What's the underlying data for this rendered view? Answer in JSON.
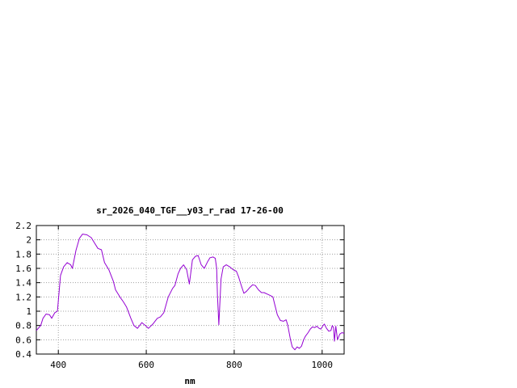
{
  "chart_data": {
    "type": "line",
    "title": "sr_2026_040_TGF__y03_r_rad 17-26-00",
    "xlabel": "nm",
    "ylabel": "",
    "xlim": [
      350,
      1050
    ],
    "ylim": [
      0.4,
      2.2
    ],
    "x_ticks": [
      400,
      600,
      800,
      1000
    ],
    "y_ticks": [
      0.4,
      0.6,
      0.8,
      1,
      1.2,
      1.4,
      1.6,
      1.8,
      2,
      2.2
    ],
    "x_tick_labels": [
      "400",
      "600",
      "800",
      "1000"
    ],
    "y_tick_labels": [
      "0.4",
      "0.6",
      "0.8",
      "1",
      "1.2",
      "1.4",
      "1.6",
      "1.8",
      "2",
      "2.2"
    ],
    "grid": true,
    "line_color": "#9400d3",
    "series": [
      {
        "x": [
          350,
          360,
          365,
          372,
          380,
          385,
          392,
          398,
          405,
          412,
          420,
          428,
          432,
          440,
          448,
          455,
          465,
          475,
          482,
          490,
          498,
          505,
          515,
          525,
          530,
          540,
          548,
          555,
          565,
          572,
          580,
          590,
          598,
          605,
          615,
          625,
          632,
          640,
          650,
          660,
          665,
          672,
          678,
          685,
          692,
          698,
          705,
          712,
          718,
          725,
          732,
          740,
          745,
          752,
          757,
          760,
          762,
          765,
          770,
          775,
          782,
          790,
          798,
          805,
          810,
          815,
          822,
          828,
          835,
          842,
          848,
          855,
          862,
          868,
          875,
          882,
          888,
          892,
          898,
          905,
          912,
          918,
          922,
          928,
          932,
          938,
          943,
          948,
          953,
          958,
          962,
          968,
          973,
          978,
          983,
          988,
          993,
          997,
          1002,
          1005,
          1010,
          1015,
          1020,
          1023,
          1026,
          1028,
          1031,
          1035,
          1040,
          1045,
          1050
        ],
        "values": [
          0.73,
          0.8,
          0.9,
          0.96,
          0.95,
          0.9,
          0.98,
          1.0,
          1.5,
          1.62,
          1.68,
          1.65,
          1.6,
          1.85,
          2.02,
          2.08,
          2.07,
          2.03,
          1.96,
          1.88,
          1.86,
          1.68,
          1.58,
          1.42,
          1.3,
          1.2,
          1.13,
          1.06,
          0.9,
          0.8,
          0.76,
          0.84,
          0.8,
          0.76,
          0.82,
          0.9,
          0.92,
          0.98,
          1.2,
          1.32,
          1.36,
          1.52,
          1.6,
          1.65,
          1.58,
          1.38,
          1.72,
          1.77,
          1.78,
          1.65,
          1.6,
          1.7,
          1.75,
          1.76,
          1.74,
          1.6,
          1.22,
          0.81,
          1.45,
          1.62,
          1.65,
          1.62,
          1.58,
          1.56,
          1.48,
          1.38,
          1.25,
          1.28,
          1.33,
          1.37,
          1.36,
          1.3,
          1.26,
          1.26,
          1.24,
          1.22,
          1.2,
          1.1,
          0.95,
          0.87,
          0.86,
          0.88,
          0.8,
          0.6,
          0.5,
          0.46,
          0.5,
          0.48,
          0.51,
          0.6,
          0.65,
          0.7,
          0.75,
          0.78,
          0.77,
          0.79,
          0.76,
          0.75,
          0.8,
          0.82,
          0.76,
          0.72,
          0.73,
          0.8,
          0.77,
          0.58,
          0.79,
          0.6,
          0.68,
          0.7,
          0.69
        ]
      }
    ]
  }
}
